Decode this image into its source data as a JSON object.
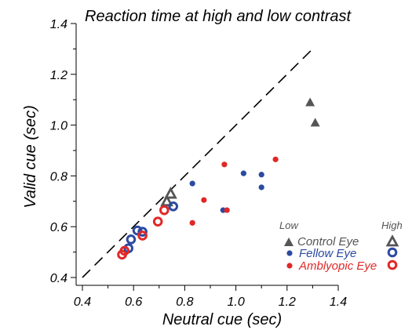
{
  "chart_data": {
    "type": "scatter",
    "title": "Reaction time at high and low contrast",
    "xlabel": "Neutral cue (sec)",
    "ylabel": "Valid cue (sec)",
    "xlim": [
      0.4,
      1.4
    ],
    "ylim": [
      0.4,
      1.4
    ],
    "x_ticks": [
      "0.4",
      "0.6",
      "0.8",
      "1.0",
      "1.2",
      "1.4"
    ],
    "y_ticks": [
      "0.4",
      "0.6",
      "0.8",
      "1.0",
      "1.2",
      "1.4"
    ],
    "reference_line": "unity (y = x), dashed",
    "grid": false,
    "legend": {
      "placement": "bottom-right",
      "low_header": "Low",
      "high_header": "High",
      "entries": [
        {
          "label": "Control Eye",
          "color": "#555555",
          "low_marker": "filled triangle",
          "high_marker": "open triangle"
        },
        {
          "label": "Fellow Eye",
          "color": "#2b4aa0",
          "low_marker": "filled circle",
          "high_marker": "open circle"
        },
        {
          "label": "Amblyopic Eye",
          "color": "#e02828",
          "low_marker": "filled circle",
          "high_marker": "open circle"
        }
      ]
    },
    "series": [
      {
        "group": "Control Eye",
        "contrast": "Low",
        "color": "#555555",
        "marker": "triangle-filled",
        "points": [
          [
            1.29,
            1.09
          ],
          [
            1.31,
            1.01
          ]
        ]
      },
      {
        "group": "Control Eye",
        "contrast": "High",
        "color": "#555555",
        "marker": "triangle-open",
        "points": [
          [
            0.73,
            0.7
          ],
          [
            0.745,
            0.73
          ]
        ]
      },
      {
        "group": "Fellow Eye",
        "contrast": "Low",
        "color": "#2b4aa0",
        "marker": "circle-filled",
        "points": [
          [
            0.83,
            0.77
          ],
          [
            0.95,
            0.665
          ],
          [
            1.03,
            0.81
          ],
          [
            1.1,
            0.805
          ],
          [
            1.1,
            0.755
          ]
        ]
      },
      {
        "group": "Fellow Eye",
        "contrast": "High",
        "color": "#2b4aa0",
        "marker": "circle-open",
        "points": [
          [
            0.58,
            0.515
          ],
          [
            0.59,
            0.55
          ],
          [
            0.615,
            0.585
          ],
          [
            0.635,
            0.58
          ],
          [
            0.755,
            0.68
          ]
        ]
      },
      {
        "group": "Amblyopic Eye",
        "contrast": "Low",
        "color": "#e02828",
        "marker": "circle-filled",
        "points": [
          [
            0.83,
            0.615
          ],
          [
            0.875,
            0.705
          ],
          [
            0.955,
            0.845
          ],
          [
            0.965,
            0.665
          ],
          [
            1.155,
            0.865
          ]
        ]
      },
      {
        "group": "Amblyopic Eye",
        "contrast": "High",
        "color": "#e02828",
        "marker": "circle-open",
        "points": [
          [
            0.555,
            0.49
          ],
          [
            0.565,
            0.505
          ],
          [
            0.635,
            0.565
          ],
          [
            0.695,
            0.62
          ],
          [
            0.72,
            0.665
          ]
        ]
      }
    ]
  }
}
